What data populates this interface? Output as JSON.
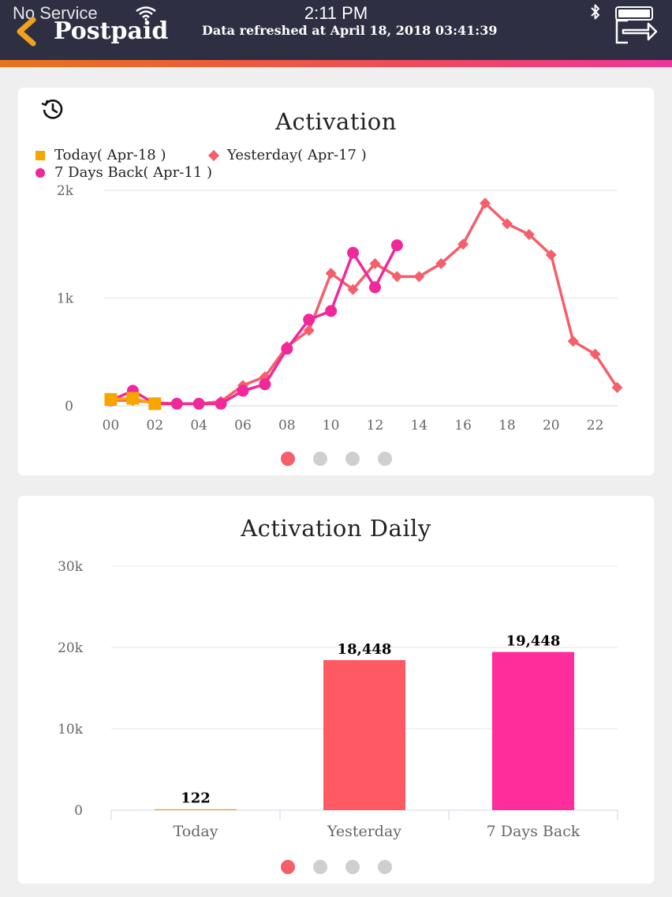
{
  "status_bar": {
    "carrier": "No Service",
    "time": "2:11 PM",
    "bluetooth_icon": "bluetooth-icon",
    "battery_icon": "battery-icon"
  },
  "header": {
    "title": "Postpaid",
    "refresh_text": "Data refreshed at April 18, 2018 03:41:39",
    "back_icon": "chevron-left-icon",
    "logout_icon": "logout-icon",
    "background": "#2f2f44",
    "stripe_colors": [
      "#e8741b",
      "#f0349a"
    ]
  },
  "activation_card": {
    "history_icon": "history-icon",
    "chart_data": {
      "type": "line",
      "title": "Activation",
      "x_ticks": [
        "00",
        "02",
        "04",
        "06",
        "08",
        "10",
        "12",
        "14",
        "16",
        "18",
        "20",
        "22"
      ],
      "y_ticks": [
        "0",
        "1k",
        "2k"
      ],
      "ylim": [
        0,
        2000
      ],
      "xlim": [
        0,
        23
      ],
      "grid": true,
      "legend_position": "top-left",
      "series": [
        {
          "name": "Today( Apr-18 )",
          "color": "#f7a600",
          "marker": "square",
          "x": [
            0,
            1,
            2
          ],
          "values": [
            60,
            70,
            20
          ]
        },
        {
          "name": "Yesterday( Apr-17 )",
          "color": "#f55e6a",
          "marker": "diamond",
          "x": [
            0,
            1,
            2,
            3,
            4,
            5,
            6,
            7,
            8,
            9,
            10,
            11,
            12,
            13,
            14,
            15,
            16,
            17,
            18,
            19,
            20,
            21,
            22,
            23
          ],
          "values": [
            50,
            50,
            30,
            20,
            20,
            40,
            190,
            270,
            550,
            700,
            1230,
            1080,
            1320,
            1200,
            1200,
            1320,
            1500,
            1880,
            1690,
            1590,
            1400,
            600,
            480,
            170
          ]
        },
        {
          "name": "7 Days Back( Apr-11 )",
          "color": "#f0289b",
          "marker": "circle",
          "x": [
            0,
            1,
            2,
            3,
            4,
            5,
            6,
            7,
            8,
            9,
            10,
            11,
            12,
            13
          ],
          "values": [
            50,
            140,
            20,
            20,
            20,
            20,
            140,
            200,
            530,
            800,
            880,
            1420,
            1100,
            1490
          ]
        }
      ]
    },
    "pager": {
      "count": 4,
      "active": 0
    }
  },
  "daily_card": {
    "chart_data": {
      "type": "bar",
      "title": "Activation Daily",
      "categories": [
        "Today",
        "Yesterday",
        "7 Days Back"
      ],
      "values": [
        122,
        18448,
        19448
      ],
      "value_labels": [
        "122",
        "18,448",
        "19,448"
      ],
      "colors": [
        "#f7a600",
        "#ff5a64",
        "#ff2c9c"
      ],
      "y_ticks": [
        "0",
        "10k",
        "20k",
        "30k"
      ],
      "ylim": [
        0,
        30000
      ],
      "grid": true
    },
    "pager": {
      "count": 4,
      "active": 0
    }
  }
}
